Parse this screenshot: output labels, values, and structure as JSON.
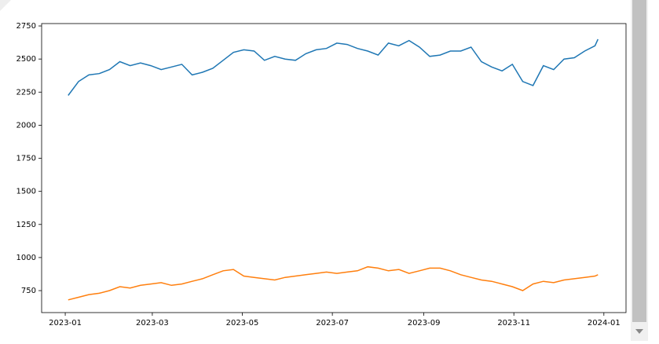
{
  "chart_data": {
    "type": "line",
    "x": [
      2,
      9,
      16,
      23,
      30,
      37,
      44,
      51,
      58,
      65,
      72,
      79,
      86,
      93,
      100,
      107,
      114,
      121,
      128,
      135,
      142,
      149,
      156,
      163,
      170,
      177,
      184,
      191,
      198,
      205,
      212,
      219,
      226,
      233,
      240,
      247,
      254,
      261,
      268,
      275,
      282,
      289,
      296,
      303,
      310,
      317,
      324,
      331,
      338,
      345,
      352,
      359,
      361
    ],
    "series": [
      {
        "color": "#1f77b4",
        "values": [
          2225,
          2330,
          2380,
          2390,
          2420,
          2480,
          2450,
          2470,
          2450,
          2420,
          2440,
          2460,
          2380,
          2400,
          2430,
          2490,
          2550,
          2570,
          2560,
          2490,
          2520,
          2500,
          2490,
          2540,
          2570,
          2580,
          2620,
          2610,
          2580,
          2560,
          2530,
          2620,
          2600,
          2640,
          2590,
          2520,
          2530,
          2560,
          2560,
          2590,
          2480,
          2440,
          2410,
          2460,
          2330,
          2300,
          2450,
          2420,
          2500,
          2510,
          2560,
          2600,
          2650
        ]
      },
      {
        "color": "#ff7f0e",
        "values": [
          680,
          700,
          720,
          730,
          750,
          780,
          770,
          790,
          800,
          810,
          790,
          800,
          820,
          840,
          870,
          900,
          910,
          860,
          850,
          840,
          830,
          850,
          860,
          870,
          880,
          890,
          880,
          890,
          900,
          930,
          920,
          900,
          910,
          880,
          900,
          920,
          920,
          900,
          870,
          850,
          830,
          820,
          800,
          780,
          750,
          800,
          820,
          810,
          830,
          840,
          850,
          860,
          870
        ]
      }
    ],
    "xlim": [
      -16,
      380
    ],
    "xticks": [
      {
        "value": 0,
        "label": "2023-01"
      },
      {
        "value": 59,
        "label": "2023-03"
      },
      {
        "value": 120,
        "label": "2023-05"
      },
      {
        "value": 181,
        "label": "2023-07"
      },
      {
        "value": 243,
        "label": "2023-09"
      },
      {
        "value": 304,
        "label": "2023-11"
      },
      {
        "value": 365,
        "label": "2024-01"
      }
    ],
    "ylim": [
      584,
      2768
    ],
    "yticks": [
      750,
      1000,
      1250,
      1500,
      1750,
      2000,
      2250,
      2500,
      2750
    ],
    "grid": false
  }
}
